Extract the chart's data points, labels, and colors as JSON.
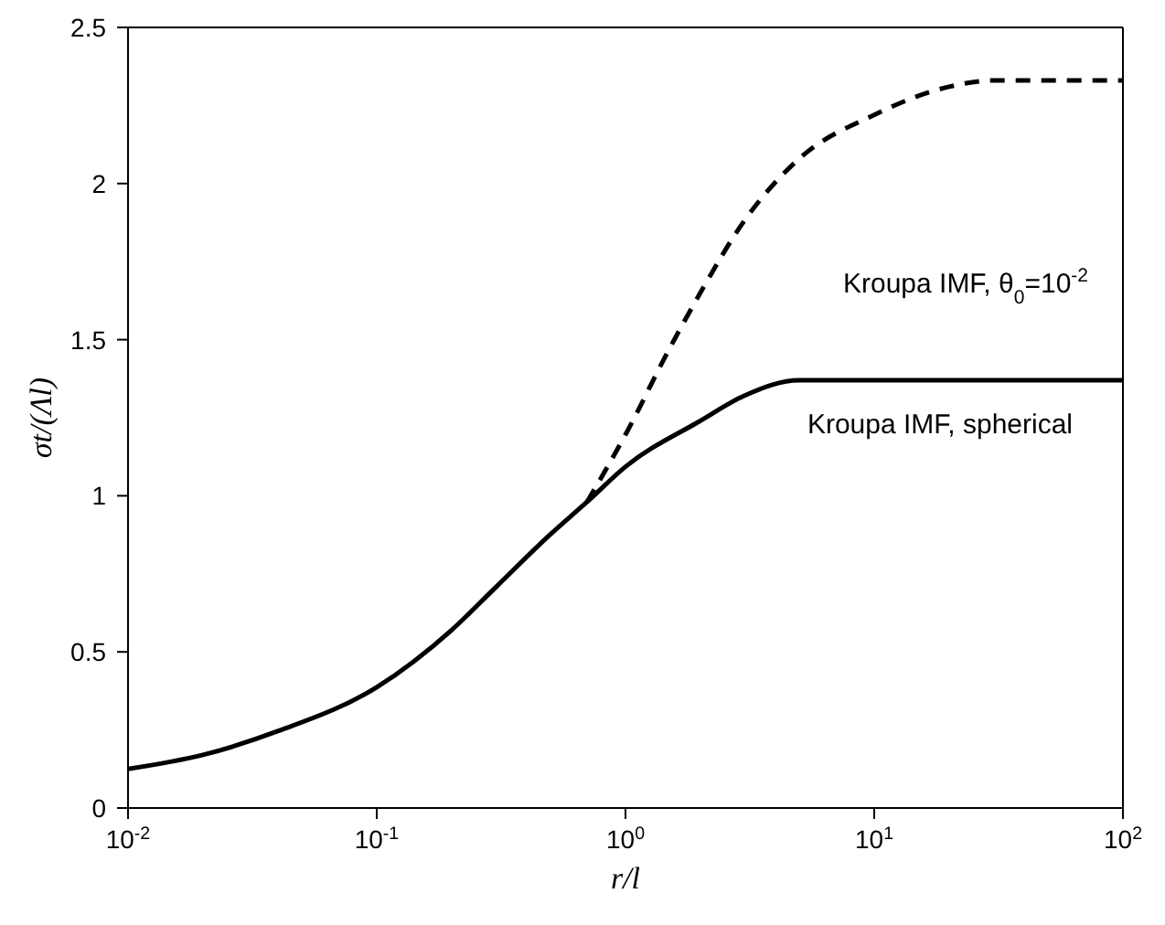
{
  "chart_data": {
    "type": "line",
    "xlabel": "r/l",
    "ylabel": "σt/(Λl)",
    "log": "x",
    "xlim": [
      0.01,
      100
    ],
    "ylim": [
      0,
      2.5
    ],
    "xticks": [
      {
        "value": 0.01,
        "label": "10$^{-2}$"
      },
      {
        "value": 0.1,
        "label": "10$^{-1}$"
      },
      {
        "value": 1,
        "label": "10$^{0}$"
      },
      {
        "value": 10,
        "label": "10$^{1}$"
      },
      {
        "value": 100,
        "label": "10$^{2}$"
      }
    ],
    "yticks": [
      0,
      0.5,
      1,
      1.5,
      2,
      2.5
    ],
    "marker": "none",
    "series": [
      {
        "color": "#000000",
        "line_style": "solid",
        "x": [
          0.01,
          0.02,
          0.04,
          0.1,
          0.2,
          0.3,
          0.5,
          0.7,
          1,
          2,
          3,
          5,
          10,
          100
        ],
        "values": [
          0.125,
          0.17,
          0.246,
          0.387,
          0.57,
          0.706,
          0.877,
          0.98,
          1.093,
          1.24,
          1.32,
          1.37,
          1.37,
          1.37
        ]
      },
      {
        "color": "#000000",
        "line_style": "dashed",
        "x": [
          0.7,
          1,
          1.5,
          2,
          3,
          5,
          10,
          20,
          30,
          100
        ],
        "values": [
          0.98,
          1.196,
          1.47,
          1.65,
          1.88,
          2.08,
          2.22,
          2.31,
          2.33,
          2.33
        ]
      }
    ],
    "annotations": [
      "Kroupa IMF, θ$_{0}$=10$^{-2}$",
      "Kroupa IMF, spherical"
    ]
  }
}
